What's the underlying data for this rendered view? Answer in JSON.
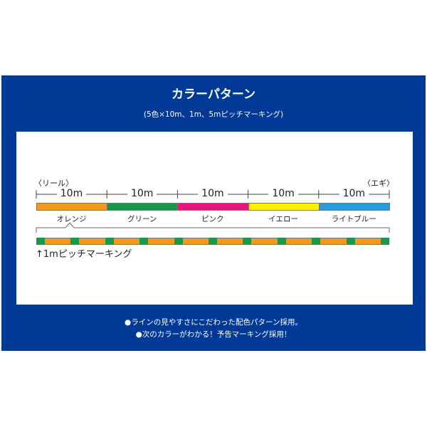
{
  "title": "カラーパターン",
  "subtitle": "(5色×10m、1m、5mピッチマーキング)",
  "diagram": {
    "left_end": "〈リール〉",
    "right_end": "〈エギ〉",
    "segments": [
      {
        "length": "10m",
        "label": "オレンジ",
        "color": "#f39a1c"
      },
      {
        "length": "10m",
        "label": "グリーン",
        "color": "#16994a"
      },
      {
        "length": "10m",
        "label": "ピンク",
        "color": "#e5177f"
      },
      {
        "length": "10m",
        "label": "イエロー",
        "color": "#fff200"
      },
      {
        "length": "10m",
        "label": "ライトブルー",
        "color": "#2a9be0"
      }
    ],
    "marking_label": "↑1mピッチマーキング",
    "marking_base_color": "#f39a1c",
    "marking_color": "#16994a"
  },
  "notes": [
    "●ラインの見やすさにこだわった配色パターン採用。",
    "●次のカラーがわかる！予告マーキング採用！"
  ],
  "colors": {
    "frame": "#003a96"
  }
}
